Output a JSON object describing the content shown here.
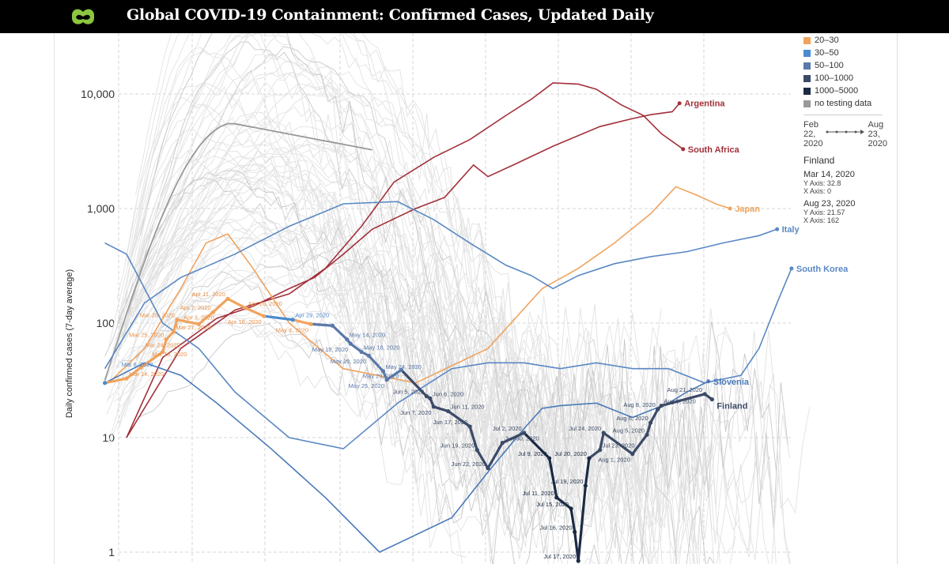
{
  "header": {
    "title": "Global COVID-19 Containment: Confirmed Cases, Updated Daily",
    "logo_color": "#8cc63f"
  },
  "legend": {
    "items": [
      {
        "label": "20–30",
        "color": "#f0a35e"
      },
      {
        "label": "30–50",
        "color": "#4a8ad0"
      },
      {
        "label": "50–100",
        "color": "#5a78aa"
      },
      {
        "label": "100–1000",
        "color": "#3b4a66"
      },
      {
        "label": "1000–5000",
        "color": "#1b2a45"
      },
      {
        "label": "no testing data",
        "color": "#999999"
      }
    ],
    "range_start": [
      "Feb",
      "22,",
      "2020"
    ],
    "range_end": [
      "Aug",
      "23,",
      "2020"
    ]
  },
  "info": {
    "country": "Finland",
    "start": {
      "date": "Mar 14, 2020",
      "y": "Y Axis: 32.8",
      "x": "X Axis: 0"
    },
    "end": {
      "date": "Aug 23, 2020",
      "y": "Y Axis: 21.57",
      "x": "X Axis: 162"
    }
  },
  "chart_data": {
    "type": "line",
    "ylabel": "Daily confirmed cases (7-day average)",
    "yscale": "log",
    "ylim": [
      0.8,
      30000
    ],
    "yticks": [
      {
        "v": 10000,
        "label": "10,000"
      },
      {
        "v": 1000,
        "label": "1,000"
      },
      {
        "v": 100,
        "label": "100"
      },
      {
        "v": 10,
        "label": "10"
      },
      {
        "v": 1,
        "label": "1"
      }
    ],
    "grid": true,
    "highlight": {
      "name": "Finland",
      "points": [
        {
          "x": -6,
          "y": 30,
          "label": "Mar 8, 2020",
          "bin": 1
        },
        {
          "x": 0,
          "y": 32.8,
          "label": "Mar 14, 2020",
          "bin": 0
        },
        {
          "x": 4,
          "y": 41,
          "label": "Mar 18, 2020",
          "bin": 0
        },
        {
          "x": 10,
          "y": 56,
          "label": "Mar 24, 2020",
          "bin": 0
        },
        {
          "x": 11,
          "y": 72,
          "label": "Mar 25, 2020",
          "bin": 0
        },
        {
          "x": 13,
          "y": 84,
          "label": "Mar 27, 2020",
          "bin": 0
        },
        {
          "x": 14,
          "y": 107,
          "label": "Mar 28, 2020",
          "bin": 0
        },
        {
          "x": 20,
          "y": 98,
          "label": "Apr 3, 2020",
          "bin": 0
        },
        {
          "x": 24,
          "y": 125,
          "label": "Apr 7, 2020",
          "bin": 0
        },
        {
          "x": 28,
          "y": 163,
          "label": "Apr 11, 2020",
          "bin": 0
        },
        {
          "x": 33,
          "y": 135,
          "label": "Apr 16, 2020",
          "bin": 0
        },
        {
          "x": 38,
          "y": 115,
          "label": "Apr 18, 2020",
          "bin": 0
        },
        {
          "x": 46,
          "y": 107,
          "label": "Apr 29, 2020",
          "bin": 1
        },
        {
          "x": 51,
          "y": 98,
          "label": "May 4, 2020",
          "bin": 0
        },
        {
          "x": 57,
          "y": 95,
          "label": "",
          "bin": 2
        },
        {
          "x": 61,
          "y": 72,
          "label": "May 14, 2020",
          "bin": 2
        },
        {
          "x": 62,
          "y": 66,
          "label": "May 15, 2020",
          "bin": 2
        },
        {
          "x": 65,
          "y": 56,
          "label": "May 18, 2020",
          "bin": 2
        },
        {
          "x": 67,
          "y": 52,
          "label": "May 20, 2020",
          "bin": 2
        },
        {
          "x": 71,
          "y": 38,
          "label": "May 24, 2020",
          "bin": 2
        },
        {
          "x": 72,
          "y": 32,
          "label": "May 25, 2020",
          "bin": 2
        },
        {
          "x": 76,
          "y": 39,
          "label": "May 29, 2020",
          "bin": 2
        },
        {
          "x": 83,
          "y": 23,
          "label": "Jun 5, 2020",
          "bin": 3
        },
        {
          "x": 84,
          "y": 22,
          "label": "Jun 6, 2020",
          "bin": 3
        },
        {
          "x": 85,
          "y": 18.6,
          "label": "Jun 7, 2020",
          "bin": 3
        },
        {
          "x": 89,
          "y": 17,
          "label": "Jun 11, 2020",
          "bin": 3
        },
        {
          "x": 95,
          "y": 12.5,
          "label": "Jun 17, 2020",
          "bin": 3
        },
        {
          "x": 97,
          "y": 7.8,
          "label": "Jun 19, 2020",
          "bin": 3
        },
        {
          "x": 100,
          "y": 5.4,
          "label": "Jun 22, 2020",
          "bin": 3
        },
        {
          "x": 104,
          "y": 9,
          "label": "Jun 30, 2020",
          "bin": 3
        },
        {
          "x": 110,
          "y": 11,
          "label": "Jul 2, 2020",
          "bin": 3
        },
        {
          "x": 117,
          "y": 6.6,
          "label": "Jul 9, 2020",
          "bin": 4
        },
        {
          "x": 119,
          "y": 3,
          "label": "Jul 11, 2020",
          "bin": 4
        },
        {
          "x": 123,
          "y": 2.4,
          "label": "Jul 15, 2020",
          "bin": 4
        },
        {
          "x": 124,
          "y": 1.5,
          "label": "Jul 16, 2020",
          "bin": 4
        },
        {
          "x": 125,
          "y": 0.84,
          "label": "Jul 17, 2020",
          "bin": 4
        },
        {
          "x": 127,
          "y": 3.8,
          "label": "Jul 19, 2020",
          "bin": 4
        },
        {
          "x": 128,
          "y": 6.6,
          "label": "Jul 20, 2020",
          "bin": 4
        },
        {
          "x": 131,
          "y": 7.8,
          "label": "Jul 23, 2020",
          "bin": 3
        },
        {
          "x": 132,
          "y": 11,
          "label": "Jul 24, 2020",
          "bin": 3
        },
        {
          "x": 140,
          "y": 7.2,
          "label": "Aug 1, 2020",
          "bin": 3
        },
        {
          "x": 144,
          "y": 10.6,
          "label": "Aug 5, 2020",
          "bin": 3
        },
        {
          "x": 145,
          "y": 13.5,
          "label": "Aug 6, 2020",
          "bin": 3
        },
        {
          "x": 147,
          "y": 17.7,
          "label": "Aug 8, 2020",
          "bin": 3
        },
        {
          "x": 148,
          "y": 19,
          "label": "Aug 9, 2020",
          "bin": 3
        },
        {
          "x": 160,
          "y": 24,
          "label": "Aug 21, 2020",
          "bin": 3
        },
        {
          "x": 162,
          "y": 21.57,
          "label": "",
          "bin": 3
        }
      ]
    },
    "series": [
      {
        "name": "Argentina",
        "color": "#a3303a",
        "points": [
          [
            0,
            10
          ],
          [
            10,
            50
          ],
          [
            25,
            110
          ],
          [
            35,
            140
          ],
          [
            45,
            200
          ],
          [
            52,
            250
          ],
          [
            60,
            400
          ],
          [
            68,
            660
          ],
          [
            80,
            1000
          ],
          [
            88,
            1250
          ],
          [
            96,
            2400
          ],
          [
            100,
            1900
          ],
          [
            107,
            2400
          ],
          [
            118,
            3500
          ],
          [
            131,
            5200
          ],
          [
            140,
            6100
          ],
          [
            145,
            6600
          ],
          [
            151,
            7000
          ],
          [
            153,
            8300
          ]
        ]
      },
      {
        "name": "South Africa",
        "color": "#a3303a",
        "points": [
          [
            0,
            10
          ],
          [
            15,
            60
          ],
          [
            30,
            130
          ],
          [
            45,
            180
          ],
          [
            55,
            300
          ],
          [
            65,
            700
          ],
          [
            74,
            1700
          ],
          [
            85,
            2800
          ],
          [
            95,
            4000
          ],
          [
            105,
            6500
          ],
          [
            112,
            9000
          ],
          [
            118,
            12500
          ],
          [
            125,
            12200
          ],
          [
            130,
            11000
          ],
          [
            137,
            8000
          ],
          [
            143,
            6500
          ],
          [
            148,
            4500
          ],
          [
            154,
            3300
          ]
        ]
      },
      {
        "name": "Japan",
        "color": "#f0a35e",
        "points": [
          [
            -5,
            30
          ],
          [
            5,
            60
          ],
          [
            15,
            200
          ],
          [
            22,
            500
          ],
          [
            28,
            600
          ],
          [
            35,
            300
          ],
          [
            45,
            100
          ],
          [
            60,
            40
          ],
          [
            80,
            30
          ],
          [
            100,
            60
          ],
          [
            115,
            200
          ],
          [
            125,
            300
          ],
          [
            135,
            500
          ],
          [
            145,
            900
          ],
          [
            152,
            1550
          ],
          [
            158,
            1300
          ],
          [
            163,
            1100
          ],
          [
            167,
            1000
          ]
        ]
      },
      {
        "name": "Italy",
        "color": "#5a88c4",
        "points": [
          [
            -6,
            40
          ],
          [
            5,
            150
          ],
          [
            15,
            250
          ],
          [
            30,
            400
          ],
          [
            45,
            700
          ],
          [
            60,
            1100
          ],
          [
            75,
            1150
          ],
          [
            85,
            800
          ],
          [
            95,
            500
          ],
          [
            105,
            320
          ],
          [
            112,
            260
          ],
          [
            118,
            200
          ],
          [
            125,
            260
          ],
          [
            135,
            330
          ],
          [
            145,
            380
          ],
          [
            155,
            420
          ],
          [
            165,
            500
          ],
          [
            175,
            580
          ],
          [
            180,
            660
          ]
        ]
      },
      {
        "name": "South Korea",
        "color": "#5a88c4",
        "points": [
          [
            -6,
            500
          ],
          [
            0,
            400
          ],
          [
            10,
            100
          ],
          [
            20,
            60
          ],
          [
            30,
            25
          ],
          [
            45,
            10
          ],
          [
            60,
            8
          ],
          [
            75,
            20
          ],
          [
            90,
            40
          ],
          [
            100,
            45
          ],
          [
            110,
            45
          ],
          [
            120,
            40
          ],
          [
            130,
            45
          ],
          [
            140,
            40
          ],
          [
            150,
            40
          ],
          [
            160,
            30
          ],
          [
            170,
            35
          ],
          [
            175,
            60
          ],
          [
            180,
            150
          ],
          [
            184,
            300
          ]
        ]
      },
      {
        "name": "Slovenia",
        "color": "#4a7ab8",
        "points": [
          [
            -6,
            30
          ],
          [
            5,
            45
          ],
          [
            15,
            35
          ],
          [
            25,
            20
          ],
          [
            40,
            8
          ],
          [
            55,
            3
          ],
          [
            70,
            1
          ],
          [
            90,
            2
          ],
          [
            100,
            5
          ],
          [
            110,
            12
          ],
          [
            115,
            18
          ],
          [
            120,
            19
          ],
          [
            130,
            20
          ],
          [
            140,
            15
          ],
          [
            150,
            20
          ],
          [
            155,
            25
          ],
          [
            161,
            31
          ]
        ]
      }
    ]
  }
}
